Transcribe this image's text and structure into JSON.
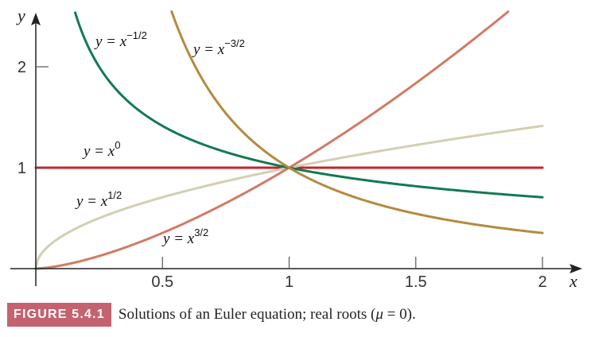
{
  "caption": {
    "badge": "FIGURE 5.4.1",
    "text_before": "Solutions of an Euler equation; real roots (",
    "mu": "μ",
    "text_after": " = 0)."
  },
  "chart_data": {
    "type": "line",
    "title": "",
    "xlabel": "x",
    "ylabel": "y",
    "xlim": [
      0,
      2.15
    ],
    "ylim": [
      0,
      2.5
    ],
    "grid": false,
    "x_ticks": [
      {
        "value": 0.5,
        "label": "0.5"
      },
      {
        "value": 1,
        "label": "1"
      },
      {
        "value": 1.5,
        "label": "1.5"
      },
      {
        "value": 2,
        "label": "2"
      }
    ],
    "y_ticks": [
      {
        "value": 1,
        "label": "1"
      },
      {
        "value": 2,
        "label": "2"
      }
    ],
    "series": [
      {
        "name": "y = x^0",
        "label_base": "y = x",
        "label_exp": "0",
        "exponent": 0,
        "color": "#c4242d",
        "x": [
          0,
          0.25,
          0.5,
          0.75,
          1,
          1.25,
          1.5,
          1.75,
          2
        ],
        "y": [
          1,
          1,
          1,
          1,
          1,
          1,
          1,
          1,
          1
        ]
      },
      {
        "name": "y = x^1/2",
        "label_base": "y = x",
        "label_exp": "1/2",
        "exponent": 0.5,
        "color": "#d3cfb3",
        "x": [
          0,
          0.25,
          0.5,
          0.75,
          1,
          1.25,
          1.5,
          1.75,
          2
        ],
        "y": [
          0,
          0.5,
          0.707,
          0.866,
          1,
          1.118,
          1.225,
          1.323,
          1.414
        ]
      },
      {
        "name": "y = x^3/2",
        "label_base": "y = x",
        "label_exp": "3/2",
        "exponent": 1.5,
        "color": "#d27a66",
        "x": [
          0,
          0.25,
          0.5,
          0.75,
          1,
          1.25,
          1.5,
          1.75,
          1.88
        ],
        "y": [
          0,
          0.125,
          0.354,
          0.65,
          1,
          1.398,
          1.837,
          2.315,
          2.578
        ]
      },
      {
        "name": "y = x^-1/2",
        "label_base": "y = x",
        "label_exp": "−1/2",
        "exponent": -0.5,
        "color": "#127a52",
        "x": [
          0.14,
          0.25,
          0.5,
          0.75,
          1,
          1.25,
          1.5,
          1.75,
          2
        ],
        "y": [
          2.673,
          2,
          1.414,
          1.155,
          1,
          0.894,
          0.816,
          0.756,
          0.707
        ]
      },
      {
        "name": "y = x^-3/2",
        "label_base": "y = x",
        "label_exp": "−3/2",
        "exponent": -1.5,
        "color": "#b48a40",
        "x": [
          0.53,
          0.75,
          1,
          1.25,
          1.5,
          1.75,
          2
        ],
        "y": [
          2.592,
          1.54,
          1,
          0.716,
          0.544,
          0.432,
          0.354
        ]
      }
    ]
  }
}
